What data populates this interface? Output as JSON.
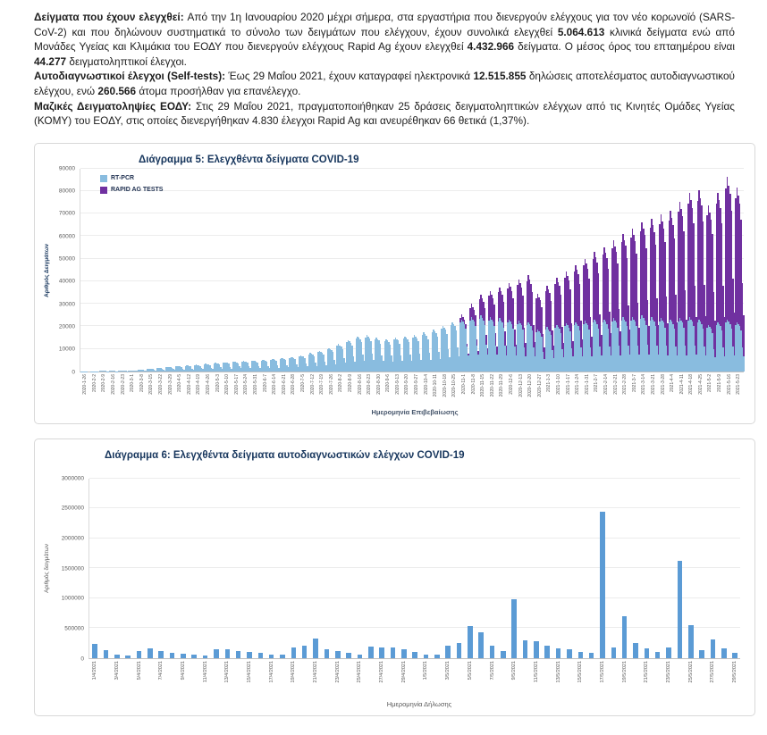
{
  "report": {
    "paragraphs": [
      {
        "segments": [
          {
            "text": "Δείγματα που έχουν ελεγχθεί:  ",
            "bold": true
          },
          {
            "text": "Από την 1η Ιανουαρίου 2020 μέχρι σήμερα, στα εργαστήρια που διενεργούν ελέγχους για τον νέο κορωνοϊό (SARS-CoV-2) και που δηλώνουν συστηματικά το σύνολο των δειγμάτων που ελέγχουν, έχουν συνολικά ελεγχθεί ",
            "bold": false
          },
          {
            "text": "5.064.613",
            "bold": true
          },
          {
            "text": " κλινικά δείγματα ενώ από Μονάδες Υγείας και Κλιμάκια του ΕΟΔΥ που διενεργούν ελέγχους Rapid Ag έχουν ελεγχθεί ",
            "bold": false
          },
          {
            "text": "4.432.966",
            "bold": true
          },
          {
            "text": " δείγματα.  Ο μέσος όρος του επταημέρου είναι ",
            "bold": false
          },
          {
            "text": "44.277",
            "bold": true
          },
          {
            "text": " δειγματοληπτικοί έλεγχοι.",
            "bold": false
          }
        ]
      },
      {
        "segments": [
          {
            "text": "Αυτοδιαγνωστικοί έλεγχοι (Self-tests): ",
            "bold": true
          },
          {
            "text": "Έως 29 Μαΐου 2021, έχουν καταγραφεί ηλεκτρονικά ",
            "bold": false
          },
          {
            "text": "12.515.855",
            "bold": true
          },
          {
            "text": " δηλώσεις αποτελέσματος αυτοδιαγνωστικού ελέγχου, ενώ ",
            "bold": false
          },
          {
            "text": "260.566",
            "bold": true
          },
          {
            "text": " άτομα προσήλθαν για επανέλεγχο.",
            "bold": false
          }
        ]
      },
      {
        "segments": [
          {
            "text": "Μαζικές Δειγματοληψίες ΕΟΔΥ: ",
            "bold": true
          },
          {
            "text": "Στις 29 Μαΐου 2021, πραγματοποιήθηκαν 25 δράσεις δειγματοληπτικών ελέγχων από τις Κινητές Ομάδες Υγείας (ΚΟΜΥ) του ΕΟΔΥ, στις οποίες διενεργήθηκαν 4.830 έλεγχοι Rapid Ag και ανευρέθηκαν 66 θετικά (1,37%).",
            "bold": false
          }
        ]
      }
    ]
  },
  "chart_data": [
    {
      "type": "bar",
      "stacked": true,
      "title": "Διάγραμμα 5: Ελεγχθέντα δείγματα COVID-19",
      "xlabel": "Ημερομηνία Επιβεβαίωσης",
      "ylabel": "Αριθμός Δειγμάτων",
      "ylim": [
        0,
        90000
      ],
      "ytick_step": 10000,
      "grid": true,
      "legend_position": "top-left",
      "legend": [
        {
          "label": "RT-PCR",
          "color": "#89BCDF"
        },
        {
          "label": "RAPID AG TESTS",
          "color": "#7030A0"
        }
      ],
      "note": "daily stacked bars estimated from weekly anchors; values are approximate daily test counts",
      "weekday_pattern": [
        1.08,
        1.15,
        1.1,
        1.05,
        0.95,
        0.55,
        0.35
      ],
      "weeks": [
        {
          "date": "2020-1-26",
          "rtpcr": 50,
          "rapid": 0
        },
        {
          "date": "2020-2-2",
          "rtpcr": 80,
          "rapid": 0
        },
        {
          "date": "2020-2-9",
          "rtpcr": 120,
          "rapid": 0
        },
        {
          "date": "2020-2-16",
          "rtpcr": 180,
          "rapid": 0
        },
        {
          "date": "2020-2-23",
          "rtpcr": 260,
          "rapid": 0
        },
        {
          "date": "2020-3-1",
          "rtpcr": 420,
          "rapid": 0
        },
        {
          "date": "2020-3-8",
          "rtpcr": 650,
          "rapid": 0
        },
        {
          "date": "2020-3-15",
          "rtpcr": 950,
          "rapid": 0
        },
        {
          "date": "2020-3-22",
          "rtpcr": 1300,
          "rapid": 0
        },
        {
          "date": "2020-3-29",
          "rtpcr": 1700,
          "rapid": 0
        },
        {
          "date": "2020-4-5",
          "rtpcr": 2000,
          "rapid": 0
        },
        {
          "date": "2020-4-12",
          "rtpcr": 2300,
          "rapid": 0
        },
        {
          "date": "2020-4-19",
          "rtpcr": 2600,
          "rapid": 0
        },
        {
          "date": "2020-4-26",
          "rtpcr": 2900,
          "rapid": 0
        },
        {
          "date": "2020-5-3",
          "rtpcr": 3200,
          "rapid": 0
        },
        {
          "date": "2020-5-10",
          "rtpcr": 3500,
          "rapid": 0
        },
        {
          "date": "2020-5-17",
          "rtpcr": 3800,
          "rapid": 0
        },
        {
          "date": "2020-5-24",
          "rtpcr": 4000,
          "rapid": 0
        },
        {
          "date": "2020-5-31",
          "rtpcr": 4200,
          "rapid": 0
        },
        {
          "date": "2020-6-7",
          "rtpcr": 4500,
          "rapid": 0
        },
        {
          "date": "2020-6-14",
          "rtpcr": 4800,
          "rapid": 0
        },
        {
          "date": "2020-6-21",
          "rtpcr": 5200,
          "rapid": 0
        },
        {
          "date": "2020-6-28",
          "rtpcr": 5600,
          "rapid": 0
        },
        {
          "date": "2020-7-5",
          "rtpcr": 6200,
          "rapid": 0
        },
        {
          "date": "2020-7-12",
          "rtpcr": 7000,
          "rapid": 0
        },
        {
          "date": "2020-7-19",
          "rtpcr": 8000,
          "rapid": 0
        },
        {
          "date": "2020-7-26",
          "rtpcr": 9000,
          "rapid": 0
        },
        {
          "date": "2020-8-2",
          "rtpcr": 10500,
          "rapid": 0
        },
        {
          "date": "2020-8-9",
          "rtpcr": 12000,
          "rapid": 0
        },
        {
          "date": "2020-8-16",
          "rtpcr": 13500,
          "rapid": 0
        },
        {
          "date": "2020-8-23",
          "rtpcr": 14000,
          "rapid": 0
        },
        {
          "date": "2020-8-30",
          "rtpcr": 13000,
          "rapid": 0
        },
        {
          "date": "2020-9-6",
          "rtpcr": 12500,
          "rapid": 0
        },
        {
          "date": "2020-9-13",
          "rtpcr": 13000,
          "rapid": 0
        },
        {
          "date": "2020-9-20",
          "rtpcr": 13500,
          "rapid": 0
        },
        {
          "date": "2020-9-27",
          "rtpcr": 14000,
          "rapid": 0
        },
        {
          "date": "2020-10-4",
          "rtpcr": 15000,
          "rapid": 0
        },
        {
          "date": "2020-10-11",
          "rtpcr": 16000,
          "rapid": 0
        },
        {
          "date": "2020-10-18",
          "rtpcr": 17500,
          "rapid": 0
        },
        {
          "date": "2020-10-25",
          "rtpcr": 19000,
          "rapid": 0
        },
        {
          "date": "2020-11-1",
          "rtpcr": 20000,
          "rapid": 2000
        },
        {
          "date": "2020-11-8",
          "rtpcr": 21000,
          "rapid": 5000
        },
        {
          "date": "2020-11-15",
          "rtpcr": 21500,
          "rapid": 8000
        },
        {
          "date": "2020-11-22",
          "rtpcr": 21000,
          "rapid": 10000
        },
        {
          "date": "2020-11-29",
          "rtpcr": 20500,
          "rapid": 12000
        },
        {
          "date": "2020-12-6",
          "rtpcr": 20000,
          "rapid": 14000
        },
        {
          "date": "2020-12-13",
          "rtpcr": 19500,
          "rapid": 16000
        },
        {
          "date": "2020-12-20",
          "rtpcr": 19000,
          "rapid": 18000
        },
        {
          "date": "2020-12-27",
          "rtpcr": 16000,
          "rapid": 14000
        },
        {
          "date": "2021-1-3",
          "rtpcr": 17000,
          "rapid": 16000
        },
        {
          "date": "2021-1-10",
          "rtpcr": 18000,
          "rapid": 18000
        },
        {
          "date": "2021-1-17",
          "rtpcr": 18500,
          "rapid": 20000
        },
        {
          "date": "2021-1-24",
          "rtpcr": 19000,
          "rapid": 22000
        },
        {
          "date": "2021-1-31",
          "rtpcr": 19500,
          "rapid": 24000
        },
        {
          "date": "2021-2-7",
          "rtpcr": 20000,
          "rapid": 26000
        },
        {
          "date": "2021-2-14",
          "rtpcr": 20000,
          "rapid": 28000
        },
        {
          "date": "2021-2-21",
          "rtpcr": 20500,
          "rapid": 30000
        },
        {
          "date": "2021-2-28",
          "rtpcr": 21000,
          "rapid": 32000
        },
        {
          "date": "2021-3-7",
          "rtpcr": 21000,
          "rapid": 34000
        },
        {
          "date": "2021-3-14",
          "rtpcr": 21500,
          "rapid": 36000
        },
        {
          "date": "2021-3-21",
          "rtpcr": 21000,
          "rapid": 38000
        },
        {
          "date": "2021-3-28",
          "rtpcr": 20500,
          "rapid": 40000
        },
        {
          "date": "2021-4-4",
          "rtpcr": 20000,
          "rapid": 42000
        },
        {
          "date": "2021-4-11",
          "rtpcr": 20500,
          "rapid": 45000
        },
        {
          "date": "2021-4-18",
          "rtpcr": 21000,
          "rapid": 48000
        },
        {
          "date": "2021-4-25",
          "rtpcr": 20000,
          "rapid": 50000
        },
        {
          "date": "2021-5-2",
          "rtpcr": 18000,
          "rapid": 46000
        },
        {
          "date": "2021-5-9",
          "rtpcr": 19000,
          "rapid": 50000
        },
        {
          "date": "2021-5-16",
          "rtpcr": 20000,
          "rapid": 55000
        },
        {
          "date": "2021-5-23",
          "rtpcr": 19000,
          "rapid": 52000
        }
      ]
    },
    {
      "type": "bar",
      "title": "Διάγραμμα 6: Ελεγχθέντα δείγματα αυτοδιαγνωστικών ελέγχων COVID-19",
      "xlabel": "Ημερομηνία Δήλωσης",
      "ylabel": "Αριθμός δειγμάτων",
      "ylim": [
        0,
        3000000
      ],
      "ytick_step": 500000,
      "grid": true,
      "bar_color": "#5B9BD5",
      "label_every": 2,
      "days": [
        {
          "date": "1/4/2021",
          "value": 230000
        },
        {
          "date": "2/4/2021",
          "value": 130000
        },
        {
          "date": "3/4/2021",
          "value": 60000
        },
        {
          "date": "4/4/2021",
          "value": 40000
        },
        {
          "date": "5/4/2021",
          "value": 120000
        },
        {
          "date": "6/4/2021",
          "value": 160000
        },
        {
          "date": "7/4/2021",
          "value": 120000
        },
        {
          "date": "8/4/2021",
          "value": 80000
        },
        {
          "date": "9/4/2021",
          "value": 70000
        },
        {
          "date": "10/4/2021",
          "value": 50000
        },
        {
          "date": "11/4/2021",
          "value": 40000
        },
        {
          "date": "12/4/2021",
          "value": 150000
        },
        {
          "date": "13/4/2021",
          "value": 140000
        },
        {
          "date": "14/4/2021",
          "value": 120000
        },
        {
          "date": "15/4/2021",
          "value": 100000
        },
        {
          "date": "16/4/2021",
          "value": 90000
        },
        {
          "date": "17/4/2021",
          "value": 60000
        },
        {
          "date": "18/4/2021",
          "value": 50000
        },
        {
          "date": "19/4/2021",
          "value": 180000
        },
        {
          "date": "20/4/2021",
          "value": 200000
        },
        {
          "date": "21/4/2021",
          "value": 330000
        },
        {
          "date": "22/4/2021",
          "value": 150000
        },
        {
          "date": "23/4/2021",
          "value": 120000
        },
        {
          "date": "24/4/2021",
          "value": 80000
        },
        {
          "date": "25/4/2021",
          "value": 60000
        },
        {
          "date": "26/4/2021",
          "value": 190000
        },
        {
          "date": "27/4/2021",
          "value": 170000
        },
        {
          "date": "28/4/2021",
          "value": 180000
        },
        {
          "date": "29/4/2021",
          "value": 150000
        },
        {
          "date": "30/4/2021",
          "value": 100000
        },
        {
          "date": "1/5/2021",
          "value": 60000
        },
        {
          "date": "2/5/2021",
          "value": 50000
        },
        {
          "date": "3/5/2021",
          "value": 200000
        },
        {
          "date": "4/5/2021",
          "value": 250000
        },
        {
          "date": "5/5/2021",
          "value": 540000
        },
        {
          "date": "6/5/2021",
          "value": 430000
        },
        {
          "date": "7/5/2021",
          "value": 200000
        },
        {
          "date": "8/5/2021",
          "value": 120000
        },
        {
          "date": "9/5/2021",
          "value": 980000
        },
        {
          "date": "10/5/2021",
          "value": 300000
        },
        {
          "date": "11/5/2021",
          "value": 280000
        },
        {
          "date": "12/5/2021",
          "value": 200000
        },
        {
          "date": "13/5/2021",
          "value": 160000
        },
        {
          "date": "14/5/2021",
          "value": 140000
        },
        {
          "date": "15/5/2021",
          "value": 100000
        },
        {
          "date": "16/5/2021",
          "value": 80000
        },
        {
          "date": "17/5/2021",
          "value": 2450000
        },
        {
          "date": "18/5/2021",
          "value": 180000
        },
        {
          "date": "19/5/2021",
          "value": 700000
        },
        {
          "date": "20/5/2021",
          "value": 250000
        },
        {
          "date": "21/5/2021",
          "value": 160000
        },
        {
          "date": "22/5/2021",
          "value": 100000
        },
        {
          "date": "23/5/2021",
          "value": 170000
        },
        {
          "date": "24/5/2021",
          "value": 1630000
        },
        {
          "date": "25/5/2021",
          "value": 550000
        },
        {
          "date": "26/5/2021",
          "value": 130000
        },
        {
          "date": "27/5/2021",
          "value": 310000
        },
        {
          "date": "28/5/2021",
          "value": 160000
        },
        {
          "date": "29/5/2021",
          "value": 90000
        }
      ]
    }
  ]
}
